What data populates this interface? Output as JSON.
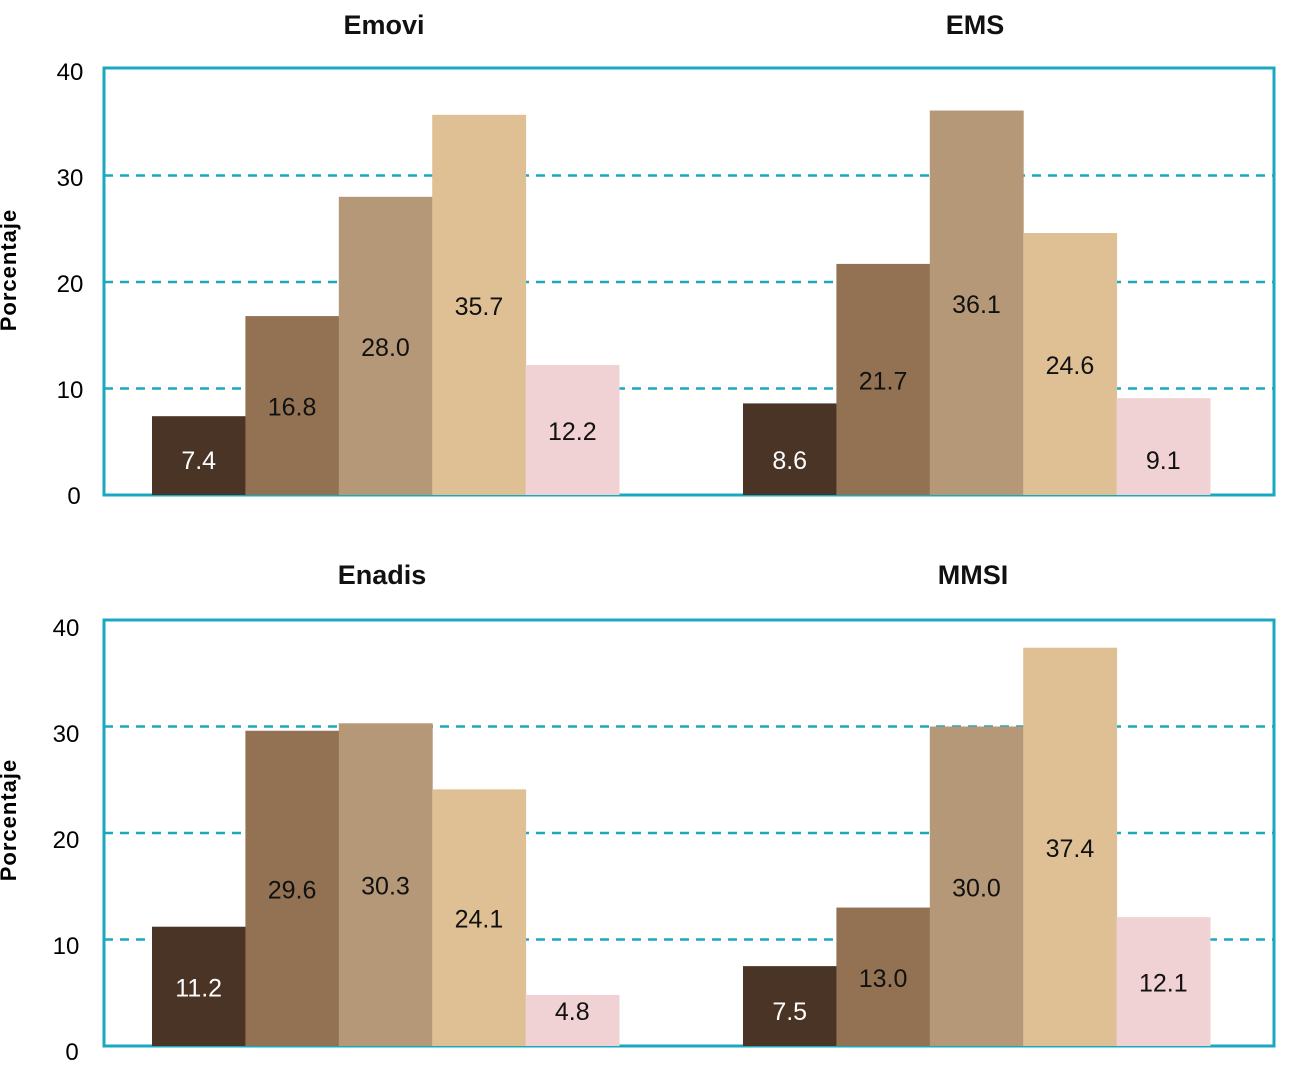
{
  "ylabel": "Porcentaje",
  "y_ticks": [
    "0",
    "10",
    "20",
    "30",
    "40"
  ],
  "colors": {
    "frame": "#1aa8bf",
    "grid": "#1aa8bf",
    "bars": [
      "#4a3426",
      "#927252",
      "#b59878",
      "#dfc095",
      "#f1d2d4"
    ]
  },
  "chart_data": [
    {
      "type": "bar",
      "title": "Emovi",
      "values": [
        7.4,
        16.8,
        28.0,
        35.7,
        12.2
      ],
      "labels": [
        "7.4",
        "16.8",
        "28.0",
        "35.7",
        "12.2"
      ],
      "ylabel": "Porcentaje",
      "ylim": [
        0,
        40
      ],
      "grid": true
    },
    {
      "type": "bar",
      "title": "EMS",
      "values": [
        8.6,
        21.7,
        36.1,
        24.6,
        9.1
      ],
      "labels": [
        "8.6",
        "21.7",
        "36.1",
        "24.6",
        "9.1"
      ],
      "ylabel": "",
      "ylim": [
        0,
        40
      ],
      "grid": true
    },
    {
      "type": "bar",
      "title": "Enadis",
      "values": [
        11.2,
        29.6,
        30.3,
        24.1,
        4.8
      ],
      "labels": [
        "11.2",
        "29.6",
        "30.3",
        "24.1",
        "4.8"
      ],
      "ylabel": "Porcentaje",
      "ylim": [
        0,
        40
      ],
      "grid": true
    },
    {
      "type": "bar",
      "title": "MMSI",
      "values": [
        7.5,
        13.0,
        30.0,
        37.4,
        12.1
      ],
      "labels": [
        "7.5",
        "13.0",
        "30.0",
        "37.4",
        "12.1"
      ],
      "ylabel": "",
      "ylim": [
        0,
        40
      ],
      "grid": true
    }
  ]
}
